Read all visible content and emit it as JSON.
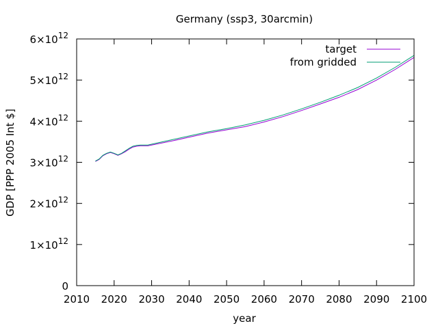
{
  "chart_data": {
    "type": "line",
    "title": "Germany (ssp3, 30arcmin)",
    "xlabel": "year",
    "ylabel": "GDP [PPP 2005 Int $]",
    "xlim": [
      2010,
      2100
    ],
    "ylim": [
      0,
      6
    ],
    "y_multiplier_label": "×10",
    "y_exponent": "12",
    "x_ticks": [
      2010,
      2020,
      2030,
      2040,
      2050,
      2060,
      2070,
      2080,
      2090,
      2100
    ],
    "y_ticks": [
      {
        "value": 0,
        "mantissa": "0",
        "exp": ""
      },
      {
        "value": 1,
        "mantissa": "1",
        "exp": "12"
      },
      {
        "value": 2,
        "mantissa": "2",
        "exp": "12"
      },
      {
        "value": 3,
        "mantissa": "3",
        "exp": "12"
      },
      {
        "value": 4,
        "mantissa": "4",
        "exp": "12"
      },
      {
        "value": 5,
        "mantissa": "5",
        "exp": "12"
      },
      {
        "value": 6,
        "mantissa": "6",
        "exp": "12"
      }
    ],
    "legend_position": "top-right",
    "grid": false,
    "series": [
      {
        "name": "target",
        "color": "#9400d3",
        "x": [
          2015,
          2016,
          2017,
          2018,
          2019,
          2020,
          2021,
          2022,
          2023,
          2024,
          2025,
          2026,
          2027,
          2028,
          2029,
          2030,
          2035,
          2040,
          2045,
          2050,
          2055,
          2060,
          2065,
          2070,
          2075,
          2080,
          2085,
          2090,
          2095,
          2100
        ],
        "values": [
          3.02,
          3.07,
          3.16,
          3.21,
          3.24,
          3.21,
          3.17,
          3.21,
          3.26,
          3.32,
          3.37,
          3.39,
          3.4,
          3.4,
          3.4,
          3.42,
          3.51,
          3.61,
          3.71,
          3.79,
          3.87,
          3.98,
          4.11,
          4.26,
          4.42,
          4.58,
          4.77,
          5.0,
          5.26,
          5.55
        ]
      },
      {
        "name": "from gridded",
        "color": "#009e73",
        "x": [
          2015,
          2016,
          2017,
          2018,
          2019,
          2020,
          2021,
          2022,
          2023,
          2024,
          2025,
          2026,
          2027,
          2028,
          2029,
          2030,
          2035,
          2040,
          2045,
          2050,
          2055,
          2060,
          2065,
          2070,
          2075,
          2080,
          2085,
          2090,
          2095,
          2100
        ],
        "values": [
          3.03,
          3.08,
          3.17,
          3.22,
          3.25,
          3.22,
          3.18,
          3.22,
          3.28,
          3.34,
          3.39,
          3.41,
          3.42,
          3.42,
          3.42,
          3.44,
          3.54,
          3.64,
          3.74,
          3.82,
          3.91,
          4.02,
          4.15,
          4.3,
          4.46,
          4.63,
          4.82,
          5.05,
          5.31,
          5.6
        ]
      }
    ]
  }
}
